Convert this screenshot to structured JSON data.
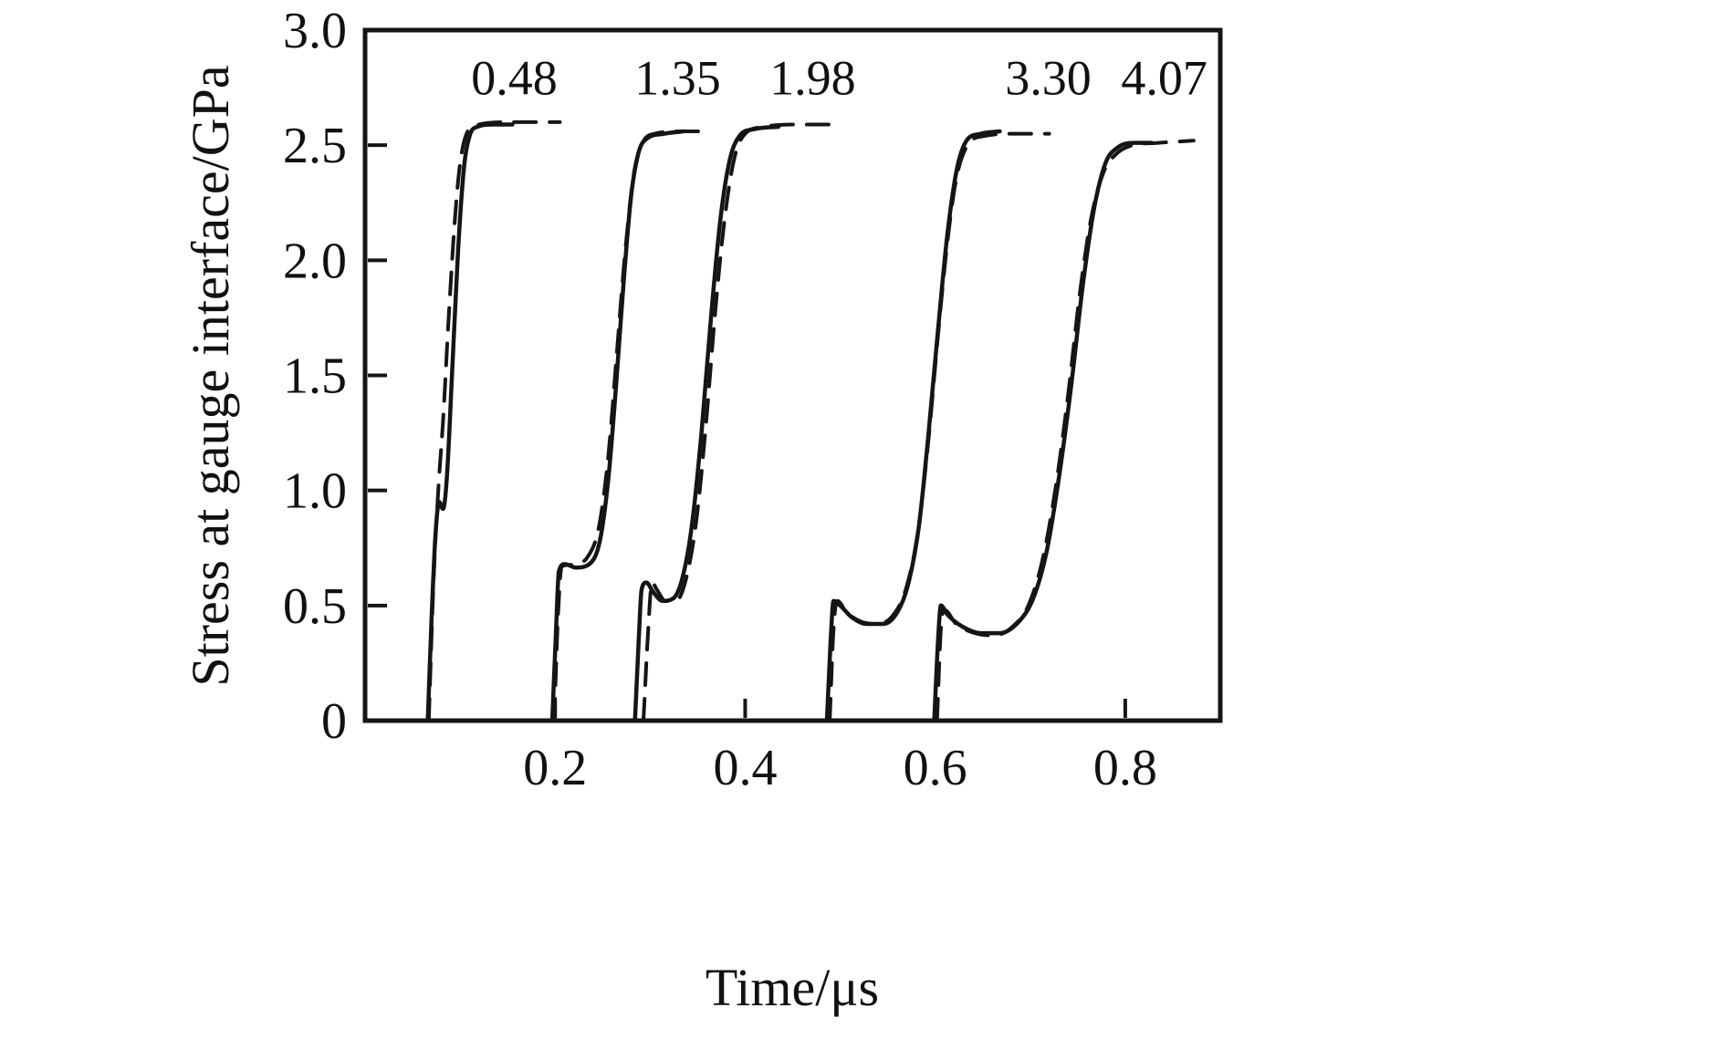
{
  "figure": {
    "background": "#ffffff",
    "ink_color": "#151515"
  },
  "chart_data": {
    "type": "line",
    "title": "",
    "xlabel": "Time/μs",
    "ylabel": "Stress at gauge interface/GPa",
    "xlim": [
      0,
      0.9
    ],
    "ylim": [
      0,
      3.0
    ],
    "xticks": [
      0.2,
      0.4,
      0.6,
      0.8
    ],
    "xtick_labels": [
      "0.2",
      "0.4",
      "0.6",
      "0.8"
    ],
    "yticks": [
      0,
      0.5,
      1.0,
      1.5,
      2.0,
      2.5,
      3.0
    ],
    "ytick_labels": [
      "0",
      "0.5",
      "1.0",
      "1.5",
      "2.0",
      "2.5",
      "3.0"
    ],
    "grid": false,
    "legend_position": "none",
    "line_color": "#151515",
    "annotations": [
      {
        "text": "0.48",
        "x": 0.157,
        "y": 2.72
      },
      {
        "text": "1.35",
        "x": 0.329,
        "y": 2.72
      },
      {
        "text": "1.98",
        "x": 0.471,
        "y": 2.72
      },
      {
        "text": "3.30",
        "x": 0.719,
        "y": 2.72
      },
      {
        "text": "4.07",
        "x": 0.841,
        "y": 2.72
      }
    ],
    "series": [
      {
        "name": "0.48-solid",
        "style": "solid",
        "points": [
          [
            0.066,
            0
          ],
          [
            0.07,
            0.45
          ],
          [
            0.074,
            0.8
          ],
          [
            0.078,
            0.95
          ],
          [
            0.082,
            0.92
          ],
          [
            0.086,
            1.05
          ],
          [
            0.092,
            1.55
          ],
          [
            0.098,
            2.05
          ],
          [
            0.104,
            2.4
          ],
          [
            0.11,
            2.54
          ],
          [
            0.118,
            2.58
          ],
          [
            0.135,
            2.59
          ],
          [
            0.155,
            2.59
          ]
        ]
      },
      {
        "name": "0.48-dashed",
        "style": "dashed",
        "points": [
          [
            0.067,
            0
          ],
          [
            0.072,
            0.6
          ],
          [
            0.077,
            1.0
          ],
          [
            0.082,
            1.3
          ],
          [
            0.088,
            1.75
          ],
          [
            0.094,
            2.15
          ],
          [
            0.1,
            2.42
          ],
          [
            0.108,
            2.56
          ],
          [
            0.12,
            2.59
          ],
          [
            0.15,
            2.6
          ],
          [
            0.185,
            2.6
          ],
          [
            0.205,
            2.6
          ]
        ]
      },
      {
        "name": "1.35-solid",
        "style": "solid",
        "points": [
          [
            0.197,
            0
          ],
          [
            0.201,
            0.4
          ],
          [
            0.204,
            0.65
          ],
          [
            0.21,
            0.68
          ],
          [
            0.222,
            0.665
          ],
          [
            0.236,
            0.68
          ],
          [
            0.247,
            0.78
          ],
          [
            0.256,
            1.05
          ],
          [
            0.264,
            1.45
          ],
          [
            0.272,
            1.9
          ],
          [
            0.28,
            2.28
          ],
          [
            0.288,
            2.47
          ],
          [
            0.297,
            2.53
          ],
          [
            0.315,
            2.55
          ],
          [
            0.335,
            2.56
          ]
        ]
      },
      {
        "name": "1.35-dashed",
        "style": "dashed",
        "points": [
          [
            0.199,
            0
          ],
          [
            0.203,
            0.45
          ],
          [
            0.207,
            0.67
          ],
          [
            0.22,
            0.68
          ],
          [
            0.234,
            0.71
          ],
          [
            0.246,
            0.84
          ],
          [
            0.256,
            1.15
          ],
          [
            0.265,
            1.6
          ],
          [
            0.274,
            2.05
          ],
          [
            0.283,
            2.38
          ],
          [
            0.292,
            2.51
          ],
          [
            0.305,
            2.55
          ],
          [
            0.33,
            2.56
          ],
          [
            0.358,
            2.56
          ]
        ]
      },
      {
        "name": "1.98-solid",
        "style": "solid",
        "points": [
          [
            0.284,
            0
          ],
          [
            0.288,
            0.35
          ],
          [
            0.291,
            0.57
          ],
          [
            0.296,
            0.6
          ],
          [
            0.303,
            0.56
          ],
          [
            0.313,
            0.52
          ],
          [
            0.324,
            0.53
          ],
          [
            0.334,
            0.62
          ],
          [
            0.344,
            0.85
          ],
          [
            0.354,
            1.25
          ],
          [
            0.364,
            1.75
          ],
          [
            0.374,
            2.18
          ],
          [
            0.384,
            2.44
          ],
          [
            0.394,
            2.54
          ],
          [
            0.41,
            2.57
          ],
          [
            0.435,
            2.58
          ]
        ]
      },
      {
        "name": "1.98-dashed",
        "style": "dashed",
        "points": [
          [
            0.293,
            0
          ],
          [
            0.298,
            0.4
          ],
          [
            0.302,
            0.6
          ],
          [
            0.307,
            0.57
          ],
          [
            0.316,
            0.52
          ],
          [
            0.327,
            0.52
          ],
          [
            0.338,
            0.62
          ],
          [
            0.349,
            0.88
          ],
          [
            0.359,
            1.3
          ],
          [
            0.369,
            1.8
          ],
          [
            0.379,
            2.2
          ],
          [
            0.389,
            2.45
          ],
          [
            0.4,
            2.55
          ],
          [
            0.42,
            2.58
          ],
          [
            0.455,
            2.59
          ],
          [
            0.49,
            2.59
          ]
        ]
      },
      {
        "name": "3.30-solid",
        "style": "solid",
        "points": [
          [
            0.486,
            0
          ],
          [
            0.49,
            0.35
          ],
          [
            0.493,
            0.52
          ],
          [
            0.5,
            0.5
          ],
          [
            0.512,
            0.45
          ],
          [
            0.528,
            0.42
          ],
          [
            0.545,
            0.42
          ],
          [
            0.56,
            0.47
          ],
          [
            0.572,
            0.6
          ],
          [
            0.583,
            0.85
          ],
          [
            0.593,
            1.25
          ],
          [
            0.603,
            1.7
          ],
          [
            0.613,
            2.12
          ],
          [
            0.623,
            2.4
          ],
          [
            0.633,
            2.52
          ],
          [
            0.648,
            2.55
          ],
          [
            0.668,
            2.56
          ]
        ]
      },
      {
        "name": "3.30-dashed",
        "style": "dashed",
        "points": [
          [
            0.489,
            0
          ],
          [
            0.493,
            0.4
          ],
          [
            0.497,
            0.52
          ],
          [
            0.507,
            0.47
          ],
          [
            0.522,
            0.43
          ],
          [
            0.54,
            0.42
          ],
          [
            0.556,
            0.46
          ],
          [
            0.569,
            0.57
          ],
          [
            0.581,
            0.8
          ],
          [
            0.592,
            1.18
          ],
          [
            0.602,
            1.63
          ],
          [
            0.612,
            2.05
          ],
          [
            0.622,
            2.35
          ],
          [
            0.634,
            2.5
          ],
          [
            0.652,
            2.54
          ],
          [
            0.685,
            2.55
          ],
          [
            0.72,
            2.55
          ]
        ]
      },
      {
        "name": "4.07-solid",
        "style": "solid",
        "points": [
          [
            0.599,
            0
          ],
          [
            0.603,
            0.35
          ],
          [
            0.606,
            0.5
          ],
          [
            0.613,
            0.46
          ],
          [
            0.628,
            0.41
          ],
          [
            0.648,
            0.38
          ],
          [
            0.668,
            0.38
          ],
          [
            0.688,
            0.43
          ],
          [
            0.703,
            0.53
          ],
          [
            0.717,
            0.73
          ],
          [
            0.73,
            1.05
          ],
          [
            0.743,
            1.45
          ],
          [
            0.755,
            1.88
          ],
          [
            0.767,
            2.22
          ],
          [
            0.779,
            2.42
          ],
          [
            0.792,
            2.49
          ],
          [
            0.81,
            2.51
          ],
          [
            0.828,
            2.51
          ]
        ]
      },
      {
        "name": "4.07-dashed",
        "style": "dashed",
        "points": [
          [
            0.602,
            0
          ],
          [
            0.606,
            0.4
          ],
          [
            0.61,
            0.48
          ],
          [
            0.622,
            0.42
          ],
          [
            0.642,
            0.38
          ],
          [
            0.662,
            0.37
          ],
          [
            0.682,
            0.41
          ],
          [
            0.698,
            0.5
          ],
          [
            0.713,
            0.7
          ],
          [
            0.727,
            1.02
          ],
          [
            0.74,
            1.42
          ],
          [
            0.752,
            1.85
          ],
          [
            0.764,
            2.18
          ],
          [
            0.777,
            2.38
          ],
          [
            0.79,
            2.46
          ],
          [
            0.808,
            2.5
          ],
          [
            0.835,
            2.51
          ],
          [
            0.872,
            2.52
          ]
        ]
      }
    ]
  }
}
